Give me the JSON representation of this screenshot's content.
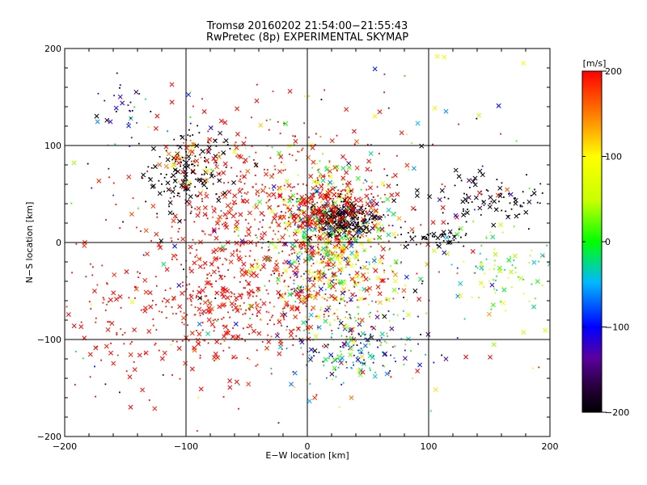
{
  "header": {
    "title": "Tromsø 20160202 21:54:00−21:55:43",
    "subtitle": "RwPretec (8p) EXPERIMENTAL SKYMAP"
  },
  "colorbar": {
    "unit_label": "[m/s]",
    "ticks": [
      "200",
      "100",
      "0",
      "−100",
      "−200"
    ],
    "range": [
      -200,
      200
    ]
  },
  "chart_data": {
    "type": "scatter",
    "title": "Tromsø 20160202 21:54:00−21:55:43",
    "subtitle": "RwPretec (8p) EXPERIMENTAL SKYMAP",
    "xlabel": "E−W location [km]",
    "ylabel": "N−S location [km]",
    "xlim": [
      -200,
      200
    ],
    "ylim": [
      -200,
      200
    ],
    "xticks": [
      "−200",
      "−100",
      "0",
      "100",
      "200"
    ],
    "yticks": [
      "−200",
      "−100",
      "0",
      "100",
      "200"
    ],
    "grid": true,
    "color_quantity": "velocity [m/s]",
    "color_range": [
      -200,
      200
    ],
    "clusters": [
      {
        "cx": -30,
        "cy": 20,
        "sx": 55,
        "sy": 50,
        "n": 650,
        "v": 200,
        "vs": 15
      },
      {
        "cx": -60,
        "cy": -70,
        "sx": 45,
        "sy": 30,
        "n": 320,
        "v": 200,
        "vs": 15
      },
      {
        "cx": 20,
        "cy": 10,
        "sx": 22,
        "sy": 30,
        "n": 600,
        "v": 40,
        "vs": 90
      },
      {
        "cx": 30,
        "cy": 25,
        "sx": 12,
        "sy": 10,
        "n": 220,
        "v": -190,
        "vs": 20
      },
      {
        "cx": 20,
        "cy": 35,
        "sx": 20,
        "sy": 10,
        "n": 160,
        "v": 200,
        "vs": 10
      },
      {
        "cx": -100,
        "cy": 70,
        "sx": 15,
        "sy": 20,
        "n": 150,
        "v": -200,
        "vs": 10
      },
      {
        "cx": -90,
        "cy": 85,
        "sx": 12,
        "sy": 12,
        "n": 50,
        "v": 150,
        "vs": 60
      },
      {
        "cx": 40,
        "cy": -110,
        "sx": 25,
        "sy": 15,
        "n": 170,
        "v": -60,
        "vs": 70
      },
      {
        "cx": 20,
        "cy": -60,
        "sx": 30,
        "sy": 20,
        "n": 180,
        "v": 80,
        "vs": 120
      },
      {
        "cx": 160,
        "cy": -30,
        "sx": 20,
        "sy": 25,
        "n": 90,
        "v": 20,
        "vs": 50
      },
      {
        "cx": 150,
        "cy": 45,
        "sx": 25,
        "sy": 12,
        "n": 90,
        "v": -200,
        "vs": 20
      },
      {
        "cx": 105,
        "cy": 5,
        "sx": 15,
        "sy": 5,
        "n": 50,
        "v": -200,
        "vs": 10
      },
      {
        "cx": -150,
        "cy": 140,
        "sx": 10,
        "sy": 15,
        "n": 30,
        "v": -140,
        "vs": 60
      },
      {
        "cx": -150,
        "cy": -80,
        "sx": 30,
        "sy": 50,
        "n": 80,
        "v": 200,
        "vs": 10
      },
      {
        "cx": 0,
        "cy": 0,
        "sx": 120,
        "sy": 110,
        "n": 280,
        "v": 0,
        "vs": 160
      }
    ]
  }
}
